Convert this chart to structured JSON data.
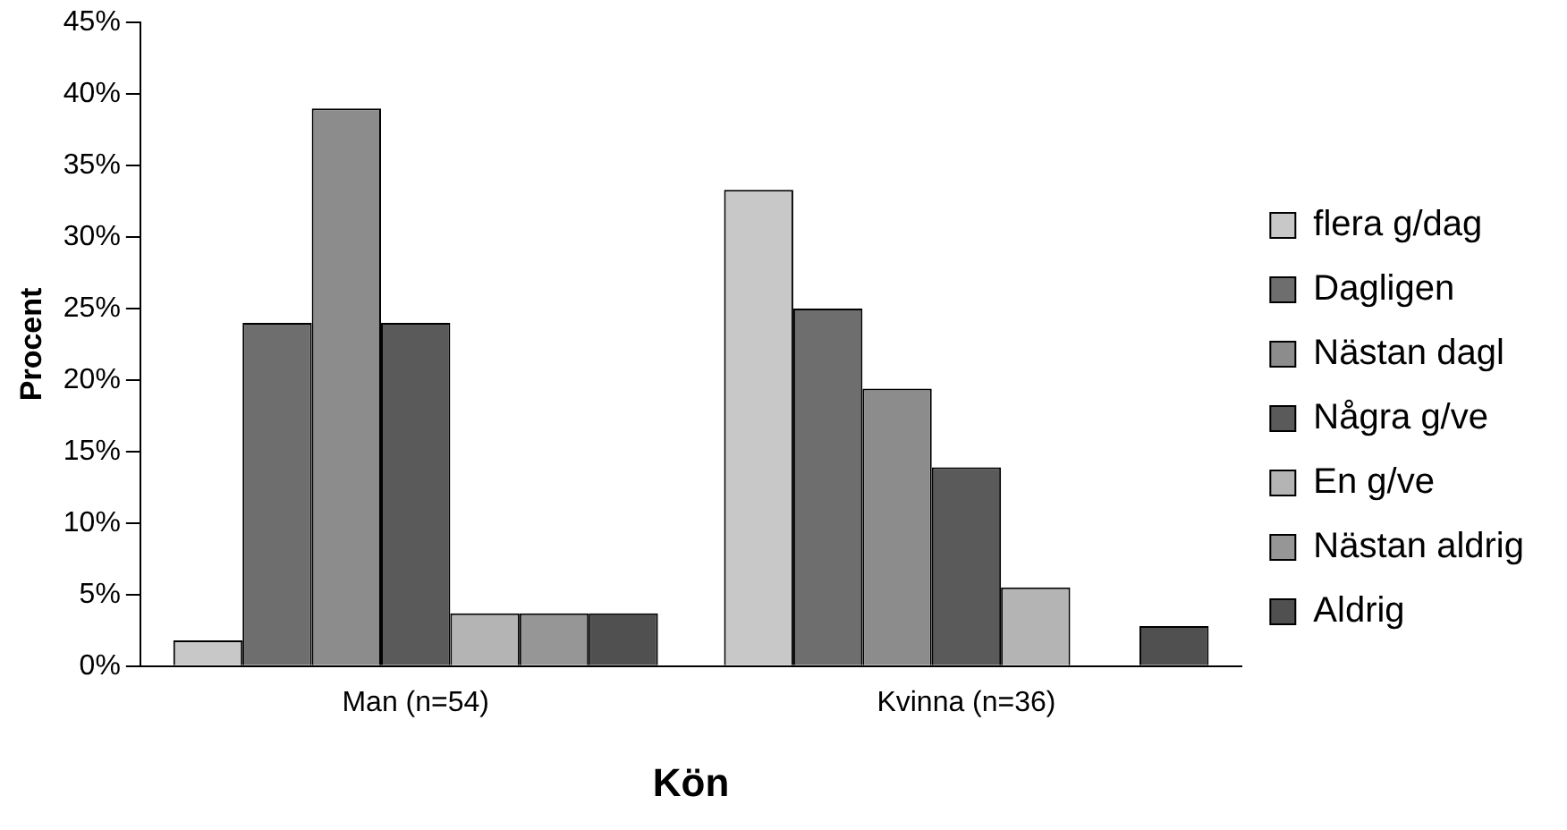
{
  "chart_data": {
    "type": "bar",
    "xlabel": "Kön",
    "ylabel": "Procent",
    "categories": [
      "Man (n=54)",
      "Kvinna (n=36)"
    ],
    "series": [
      {
        "name": "flera g/dag",
        "color": "#c8c8c8",
        "values": [
          1.8,
          33.3
        ]
      },
      {
        "name": "Dagligen",
        "color": "#6e6e6e",
        "values": [
          24,
          25
        ]
      },
      {
        "name": "Nästan dagl",
        "color": "#8c8c8c",
        "values": [
          39,
          19.4
        ]
      },
      {
        "name": "Några g/ve",
        "color": "#5a5a5a",
        "values": [
          24,
          13.9
        ]
      },
      {
        "name": "En g/ve",
        "color": "#b4b4b4",
        "values": [
          3.7,
          5.5
        ]
      },
      {
        "name": "Nästan aldrig",
        "color": "#969696",
        "values": [
          3.7,
          0
        ]
      },
      {
        "name": "Aldrig",
        "color": "#505050",
        "values": [
          3.7,
          2.8
        ]
      }
    ],
    "ylim": [
      0,
      45
    ],
    "yticks": [
      {
        "value": 0,
        "label": "0%"
      },
      {
        "value": 5,
        "label": "5%"
      },
      {
        "value": 10,
        "label": "10%"
      },
      {
        "value": 15,
        "label": "15%"
      },
      {
        "value": 20,
        "label": "20%"
      },
      {
        "value": 25,
        "label": "25%"
      },
      {
        "value": 30,
        "label": "30%"
      },
      {
        "value": 35,
        "label": "35%"
      },
      {
        "value": 40,
        "label": "40%"
      },
      {
        "value": 45,
        "label": "45%"
      }
    ],
    "grid": false,
    "legend": "right"
  }
}
